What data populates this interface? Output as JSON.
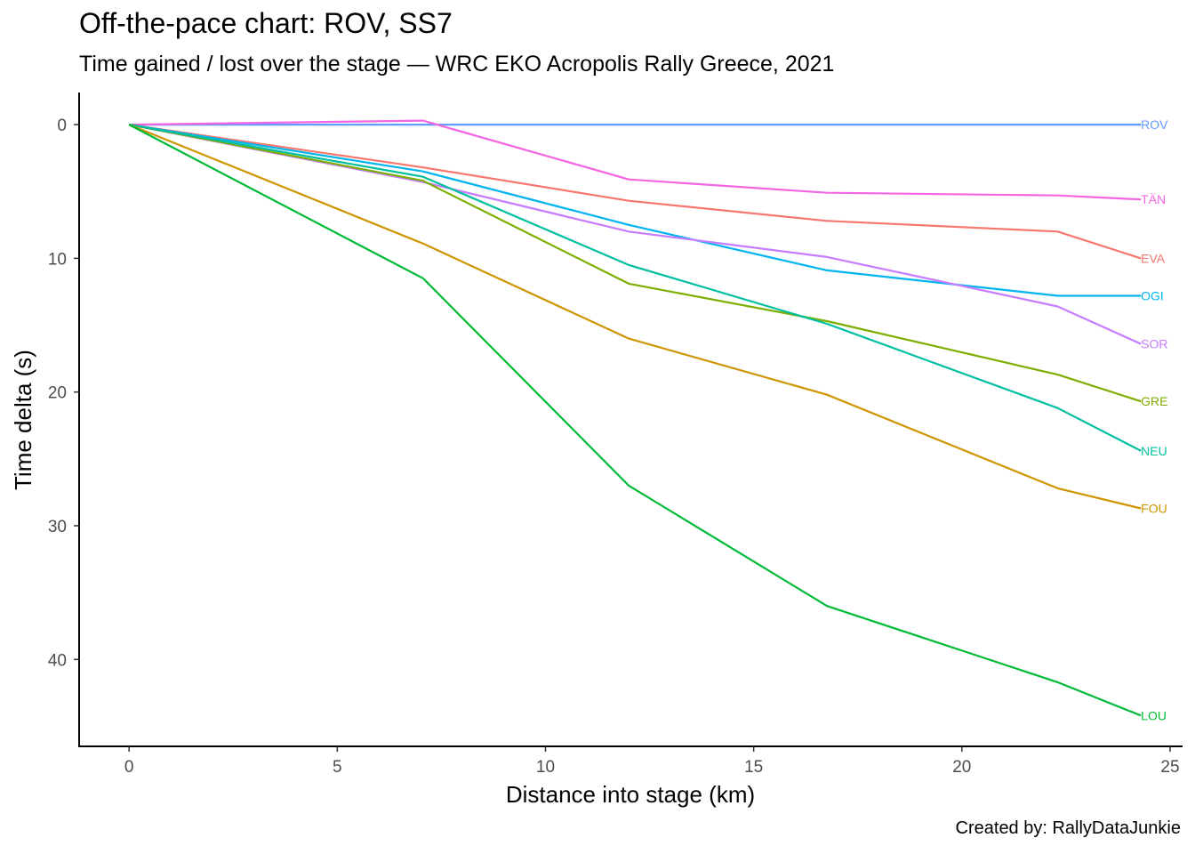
{
  "title": "Off-the-pace chart: ROV, SS7",
  "subtitle": "Time gained / lost over the stage — WRC EKO Acropolis Rally Greece, 2021",
  "caption": "Created by: RallyDataJunkie",
  "chart_data": {
    "type": "line",
    "xlabel": "Distance into stage (km)",
    "ylabel": "Time delta (s)",
    "xlim": [
      -1.2,
      25.3
    ],
    "ylim": [
      -2.4,
      46.5
    ],
    "y_reversed": true,
    "x_ticks": [
      0,
      5,
      10,
      15,
      20,
      25
    ],
    "y_ticks": [
      0,
      10,
      20,
      30,
      40
    ],
    "grid": false,
    "legend": "direct labels at line ends",
    "x": [
      0,
      7.06,
      12.0,
      16.76,
      22.3,
      24.3
    ],
    "series": [
      {
        "name": "ROV",
        "color": "#619CFF",
        "values": [
          0,
          0,
          0,
          0,
          0,
          0
        ]
      },
      {
        "name": "TÄN",
        "color": "#F564E3",
        "values": [
          0,
          -0.3,
          4.1,
          5.1,
          5.3,
          5.6
        ]
      },
      {
        "name": "EVA",
        "color": "#F8766D",
        "values": [
          0,
          3.2,
          5.7,
          7.2,
          8.0,
          10.0
        ]
      },
      {
        "name": "OGI",
        "color": "#00B4EF",
        "values": [
          0,
          3.5,
          7.5,
          10.9,
          12.8,
          12.8
        ]
      },
      {
        "name": "SOR",
        "color": "#C77CFF",
        "values": [
          0,
          4.3,
          8.0,
          9.9,
          13.6,
          16.4
        ]
      },
      {
        "name": "GRE",
        "color": "#7CAE00",
        "values": [
          0,
          4.2,
          11.9,
          14.7,
          18.7,
          20.7
        ]
      },
      {
        "name": "NEU",
        "color": "#00BFA0",
        "values": [
          0,
          3.9,
          10.5,
          14.9,
          21.2,
          24.4
        ]
      },
      {
        "name": "FOU",
        "color": "#CD9600",
        "values": [
          0,
          8.9,
          16.0,
          20.2,
          27.2,
          28.7
        ]
      },
      {
        "name": "LOU",
        "color": "#00BA38",
        "values": [
          0,
          11.5,
          27.0,
          36.0,
          41.7,
          44.2
        ]
      }
    ]
  }
}
